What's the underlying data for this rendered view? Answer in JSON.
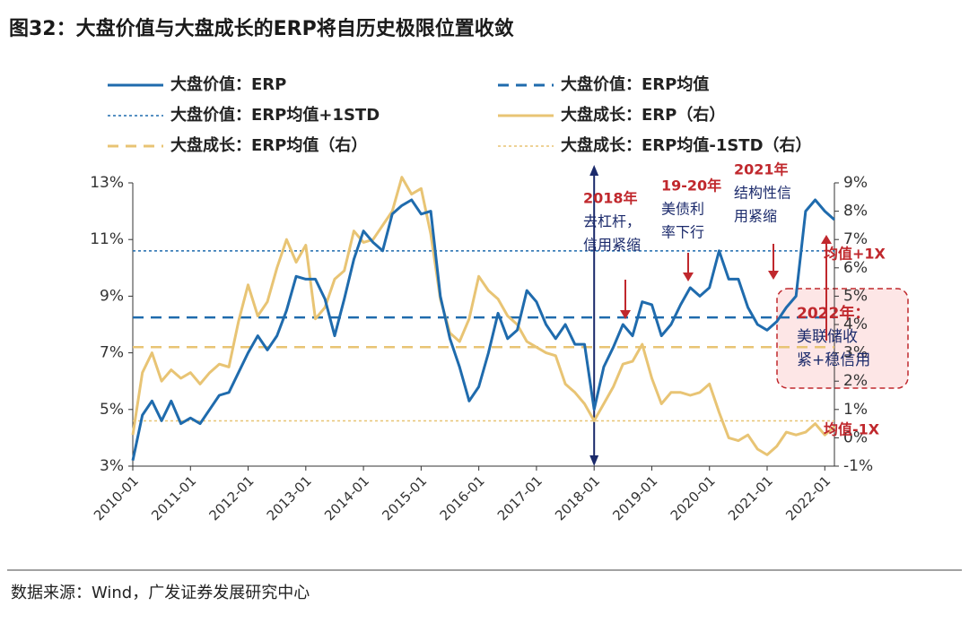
{
  "chart_data": {
    "type": "line",
    "title": "图32：大盘价值与大盘成长的ERP将自历史极限位置收敛",
    "source": "数据来源：Wind，广发证券发展研究中心",
    "x": [
      "2010-01",
      "2010-03",
      "2010-05",
      "2010-07",
      "2010-09",
      "2010-11",
      "2011-01",
      "2011-03",
      "2011-05",
      "2011-07",
      "2011-09",
      "2011-11",
      "2012-01",
      "2012-03",
      "2012-05",
      "2012-07",
      "2012-09",
      "2012-11",
      "2013-01",
      "2013-03",
      "2013-05",
      "2013-07",
      "2013-09",
      "2013-11",
      "2014-01",
      "2014-03",
      "2014-05",
      "2014-07",
      "2014-09",
      "2014-11",
      "2015-01",
      "2015-03",
      "2015-05",
      "2015-07",
      "2015-09",
      "2015-11",
      "2016-01",
      "2016-03",
      "2016-05",
      "2016-07",
      "2016-09",
      "2016-11",
      "2017-01",
      "2017-03",
      "2017-05",
      "2017-07",
      "2017-09",
      "2017-11",
      "2018-01",
      "2018-03",
      "2018-05",
      "2018-07",
      "2018-09",
      "2018-11",
      "2019-01",
      "2019-03",
      "2019-05",
      "2019-07",
      "2019-09",
      "2019-11",
      "2020-01",
      "2020-03",
      "2020-05",
      "2020-07",
      "2020-09",
      "2020-11",
      "2021-01",
      "2021-03",
      "2021-05",
      "2021-07",
      "2021-09",
      "2021-11",
      "2022-01",
      "2022-03"
    ],
    "xlim": [
      "2010-01",
      "2022-03"
    ],
    "xticks": [
      "2010-01",
      "2011-01",
      "2012-01",
      "2013-01",
      "2014-01",
      "2015-01",
      "2016-01",
      "2017-01",
      "2018-01",
      "2019-01",
      "2020-01",
      "2021-01",
      "2022-01"
    ],
    "ylim": [
      3,
      13
    ],
    "yticks": [
      {
        "value": 3,
        "label": "3%"
      },
      {
        "value": 5,
        "label": "5%"
      },
      {
        "value": 7,
        "label": "7%"
      },
      {
        "value": 9,
        "label": "9%"
      },
      {
        "value": 11,
        "label": "11%"
      },
      {
        "value": 13,
        "label": "13%"
      }
    ],
    "y2lim": [
      -1,
      9
    ],
    "y2ticks": [
      {
        "value": -1,
        "label": "-1%"
      },
      {
        "value": 0,
        "label": "0%"
      },
      {
        "value": 1,
        "label": "1%"
      },
      {
        "value": 2,
        "label": "2%"
      },
      {
        "value": 3,
        "label": "3%"
      },
      {
        "value": 4,
        "label": "4%"
      },
      {
        "value": 5,
        "label": "5%"
      },
      {
        "value": 6,
        "label": "6%"
      },
      {
        "value": 7,
        "label": "7%"
      },
      {
        "value": 8,
        "label": "8%"
      },
      {
        "value": 9,
        "label": "9%"
      }
    ],
    "series": [
      {
        "name": "大盘价值：ERP",
        "color": "#1f6bad",
        "line_style": "solid",
        "axis": "y",
        "values": [
          3.2,
          4.8,
          5.3,
          4.6,
          5.3,
          4.5,
          4.7,
          4.5,
          5.0,
          5.5,
          5.6,
          6.3,
          7.0,
          7.6,
          7.1,
          7.6,
          8.5,
          9.7,
          9.6,
          9.6,
          8.9,
          7.6,
          8.9,
          10.3,
          11.3,
          10.9,
          10.6,
          11.9,
          12.2,
          12.4,
          11.9,
          12.0,
          9.0,
          7.5,
          6.5,
          5.3,
          5.8,
          7.0,
          8.4,
          7.5,
          7.8,
          9.2,
          8.8,
          8.0,
          7.5,
          8.0,
          7.3,
          7.3,
          5.0,
          6.5,
          7.2,
          8.0,
          7.6,
          8.8,
          8.7,
          7.6,
          8.0,
          8.7,
          9.3,
          9.0,
          9.3,
          10.6,
          9.6,
          9.6,
          8.6,
          8.0,
          7.8,
          8.1,
          8.6,
          9.0,
          12.0,
          12.4,
          12.0,
          11.7
        ]
      },
      {
        "name": "大盘价值：ERP均值",
        "color": "#1f6bad",
        "line_style": "dashed",
        "axis": "y",
        "value": 8.25
      },
      {
        "name": "大盘价值：ERP均值+1STD",
        "color": "#1f6bad",
        "line_style": "dotted",
        "axis": "y",
        "value": 10.6
      },
      {
        "name": "大盘成长：ERP（右）",
        "color": "#e8c474",
        "line_style": "solid",
        "axis": "y2",
        "values": [
          0.1,
          2.3,
          3.0,
          2.0,
          2.4,
          2.1,
          2.3,
          1.9,
          2.3,
          2.6,
          2.5,
          4.1,
          5.4,
          4.3,
          4.8,
          6.0,
          7.0,
          6.2,
          6.8,
          4.2,
          4.6,
          5.6,
          5.9,
          7.3,
          6.9,
          7.0,
          7.5,
          8.0,
          9.2,
          8.6,
          8.8,
          7.2,
          4.9,
          3.7,
          3.4,
          4.2,
          5.7,
          5.2,
          4.9,
          4.3,
          4.0,
          3.4,
          3.2,
          3.0,
          2.9,
          1.9,
          1.6,
          1.2,
          0.6,
          1.2,
          1.8,
          2.6,
          2.7,
          3.3,
          2.1,
          1.2,
          1.6,
          1.6,
          1.5,
          1.6,
          1.9,
          0.9,
          0.0,
          -0.1,
          0.1,
          -0.4,
          -0.6,
          -0.3,
          0.2,
          0.1,
          0.2,
          0.5,
          0.1,
          0.4
        ]
      },
      {
        "name": "大盘成长：ERP均值（右）",
        "color": "#e8c474",
        "line_style": "dashed",
        "axis": "y2",
        "value": 3.2
      },
      {
        "name": "大盘成长：ERP均值-1STD（右）",
        "color": "#e8c474",
        "line_style": "dotted",
        "axis": "y2",
        "value": 0.6
      }
    ],
    "annotations": [
      {
        "lines": [
          "2018年",
          "去杠杆，",
          "信用紧缩"
        ]
      },
      {
        "lines": [
          "19-20年",
          "美债利",
          "率下行"
        ]
      },
      {
        "lines": [
          "2021年",
          "结构性信",
          "用紧缩"
        ]
      },
      {
        "lines": [
          "2022年：",
          "美联储收",
          "紧+稳信用"
        ]
      },
      {
        "lines": [
          "均值+1X"
        ]
      },
      {
        "lines": [
          "均值-1X"
        ]
      }
    ]
  }
}
